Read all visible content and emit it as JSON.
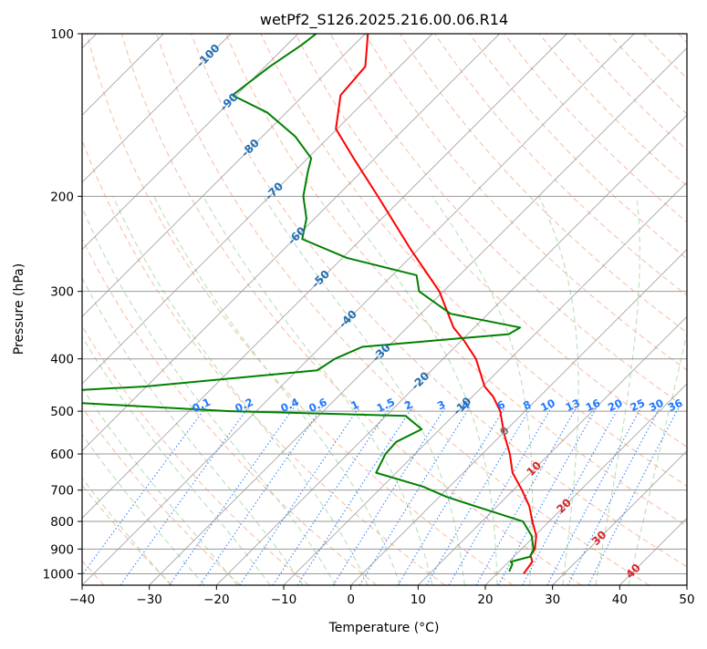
{
  "chart_data": {
    "type": "line",
    "title": "wetPf2_S126.2025.216.00.06.R14",
    "xlabel": "Temperature (°C)",
    "ylabel": "Pressure (hPa)",
    "xlim": [
      -40,
      50
    ],
    "ylim": [
      1050,
      100
    ],
    "y_scale": "log",
    "skew": 45,
    "grid": true,
    "x_ticks": [
      "−40",
      "−30",
      "−20",
      "−10",
      "0",
      "10",
      "20",
      "30",
      "40",
      "50"
    ],
    "y_ticks": [
      "100",
      "200",
      "300",
      "400",
      "500",
      "600",
      "700",
      "800",
      "900",
      "1000"
    ],
    "colors": {
      "temperature": "#ff0000",
      "dewpoint": "#008000",
      "dry_adiabats": "#f4a582",
      "moist_adiabats": "#a6d6a6",
      "mixing_ratio": "#1f77ff",
      "isotherms": "#888888",
      "isotherm_labels_cold": "#1f6fb2",
      "isotherm_labels_warm": "#d62728"
    },
    "series": [
      {
        "name": "temperature",
        "points": [
          {
            "p": 1000,
            "t": 24.0
          },
          {
            "p": 950,
            "t": 23.5
          },
          {
            "p": 925,
            "t": 22.3
          },
          {
            "p": 900,
            "t": 22.0
          },
          {
            "p": 850,
            "t": 20.2
          },
          {
            "p": 800,
            "t": 17.5
          },
          {
            "p": 750,
            "t": 14.8
          },
          {
            "p": 700,
            "t": 11.3
          },
          {
            "p": 650,
            "t": 7.3
          },
          {
            "p": 600,
            "t": 4.1
          },
          {
            "p": 550,
            "t": 0.2
          },
          {
            "p": 500,
            "t": -3.7
          },
          {
            "p": 470,
            "t": -6.9
          },
          {
            "p": 450,
            "t": -9.7
          },
          {
            "p": 400,
            "t": -15.1
          },
          {
            "p": 370,
            "t": -19.6
          },
          {
            "p": 350,
            "t": -23.1
          },
          {
            "p": 300,
            "t": -30.6
          },
          {
            "p": 250,
            "t": -41.3
          },
          {
            "p": 200,
            "t": -53.9
          },
          {
            "p": 170,
            "t": -63.2
          },
          {
            "p": 150,
            "t": -70.2
          },
          {
            "p": 130,
            "t": -74.5
          },
          {
            "p": 115,
            "t": -75.1
          },
          {
            "p": 100,
            "t": -79.6
          }
        ]
      },
      {
        "name": "dewpoint",
        "points": [
          {
            "p": 990,
            "t": 21.5
          },
          {
            "p": 960,
            "t": 20.9
          },
          {
            "p": 950,
            "t": 20.3
          },
          {
            "p": 930,
            "t": 22.4
          },
          {
            "p": 900,
            "t": 21.8
          },
          {
            "p": 850,
            "t": 19.5
          },
          {
            "p": 800,
            "t": 16.1
          },
          {
            "p": 750,
            "t": 6.8
          },
          {
            "p": 720,
            "t": 1.0
          },
          {
            "p": 690,
            "t": -3.9
          },
          {
            "p": 650,
            "t": -13.0
          },
          {
            "p": 600,
            "t": -14.4
          },
          {
            "p": 570,
            "t": -14.6
          },
          {
            "p": 540,
            "t": -12.7
          },
          {
            "p": 510,
            "t": -17.1
          },
          {
            "p": 500,
            "t": -43.9
          },
          {
            "p": 480,
            "t": -71.5
          },
          {
            "p": 465,
            "t": -79.4
          },
          {
            "p": 460,
            "t": -73.6
          },
          {
            "p": 450,
            "t": -60.2
          },
          {
            "p": 420,
            "t": -37.0
          },
          {
            "p": 400,
            "t": -36.1
          },
          {
            "p": 380,
            "t": -33.8
          },
          {
            "p": 360,
            "t": -13.9
          },
          {
            "p": 350,
            "t": -13.2
          },
          {
            "p": 330,
            "t": -25.6
          },
          {
            "p": 300,
            "t": -33.6
          },
          {
            "p": 280,
            "t": -36.4
          },
          {
            "p": 260,
            "t": -49.4
          },
          {
            "p": 240,
            "t": -58.8
          },
          {
            "p": 220,
            "t": -61.2
          },
          {
            "p": 200,
            "t": -65.0
          },
          {
            "p": 180,
            "t": -68.0
          },
          {
            "p": 170,
            "t": -69.5
          },
          {
            "p": 155,
            "t": -75.1
          },
          {
            "p": 140,
            "t": -82.8
          },
          {
            "p": 130,
            "t": -90.6
          },
          {
            "p": 115,
            "t": -89.3
          },
          {
            "p": 105,
            "t": -87.8
          },
          {
            "p": 100,
            "t": -87.3
          }
        ]
      }
    ],
    "isotherm_labels": [
      {
        "t": -100,
        "text": "-100",
        "p": 110
      },
      {
        "t": -90,
        "text": "-90",
        "p": 134
      },
      {
        "t": -80,
        "text": "-80",
        "p": 163
      },
      {
        "t": -70,
        "text": "-70",
        "p": 196
      },
      {
        "t": -60,
        "text": "-60",
        "p": 237
      },
      {
        "t": -50,
        "text": "-50",
        "p": 285
      },
      {
        "t": -40,
        "text": "-40",
        "p": 338
      },
      {
        "t": -30,
        "text": "-30",
        "p": 390
      },
      {
        "t": -20,
        "text": "-20",
        "p": 440
      },
      {
        "t": -10,
        "text": "-10",
        "p": 490
      },
      {
        "t": 0,
        "text": "0",
        "p": 545
      },
      {
        "t": 10,
        "text": "10",
        "p": 640
      },
      {
        "t": 20,
        "text": "20",
        "p": 750
      },
      {
        "t": 30,
        "text": "30",
        "p": 860
      },
      {
        "t": 40,
        "text": "40",
        "p": 990
      }
    ],
    "mixing_ratio_labels": [
      "0.1",
      "0.2",
      "0.4",
      "0.6",
      "1",
      "1.5",
      "2",
      "3",
      "4",
      "6",
      "8",
      "10",
      "13",
      "16",
      "20",
      "25",
      "30",
      "36"
    ],
    "mixing_ratio_values": [
      0.1,
      0.2,
      0.4,
      0.6,
      1,
      1.5,
      2,
      3,
      4,
      6,
      8,
      10,
      13,
      16,
      20,
      25,
      30,
      36
    ]
  }
}
